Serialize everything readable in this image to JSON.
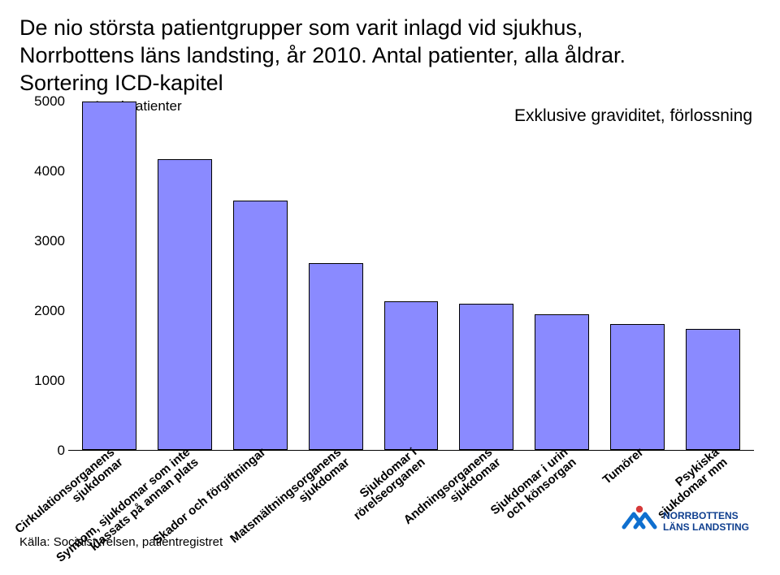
{
  "title_lines": [
    "De nio största patientgrupper som varit inlagd vid sjukhus,",
    "Norrbottens läns landsting, år 2010. Antal patienter, alla åldrar.",
    "Sortering ICD-kapitel"
  ],
  "chart": {
    "type": "bar",
    "series_label": "Antal patienter",
    "annotation": "Exklusive graviditet, förlossning",
    "ylim": [
      0,
      5000
    ],
    "ytick_step": 1000,
    "yticks": [
      0,
      1000,
      2000,
      3000,
      4000,
      5000
    ],
    "bar_color": "#8a8aff",
    "bar_border_color": "#000000",
    "background_color": "#ffffff",
    "categories": [
      "Cirkulationsorganens\nsjukdomar",
      "Symtom, sjukdomar som inte\nklassats på annan plats",
      "Skador och förgiftningar",
      "Matsmältningsorganens\nsjukdomar",
      "Sjukdomar i\nrörelseorganen",
      "Andningsorganens\nsjukdomar",
      "Sjukdomar i urin\noch könsorgan",
      "Tumörer",
      "Psykiska\nsjukdomar mm"
    ],
    "values": [
      5000,
      4170,
      3580,
      2680,
      2140,
      2100,
      1950,
      1810,
      1740
    ]
  },
  "footer": {
    "source_text": "Källa: Socialstyrelsen, patientregistret"
  },
  "logo": {
    "text_line1": "NORRBOTTENS",
    "text_line2": "LÄNS LANDSTING",
    "text_color": "#0f3f8f",
    "accent_color1": "#0f6fcf",
    "accent_color2": "#d63a3a"
  }
}
